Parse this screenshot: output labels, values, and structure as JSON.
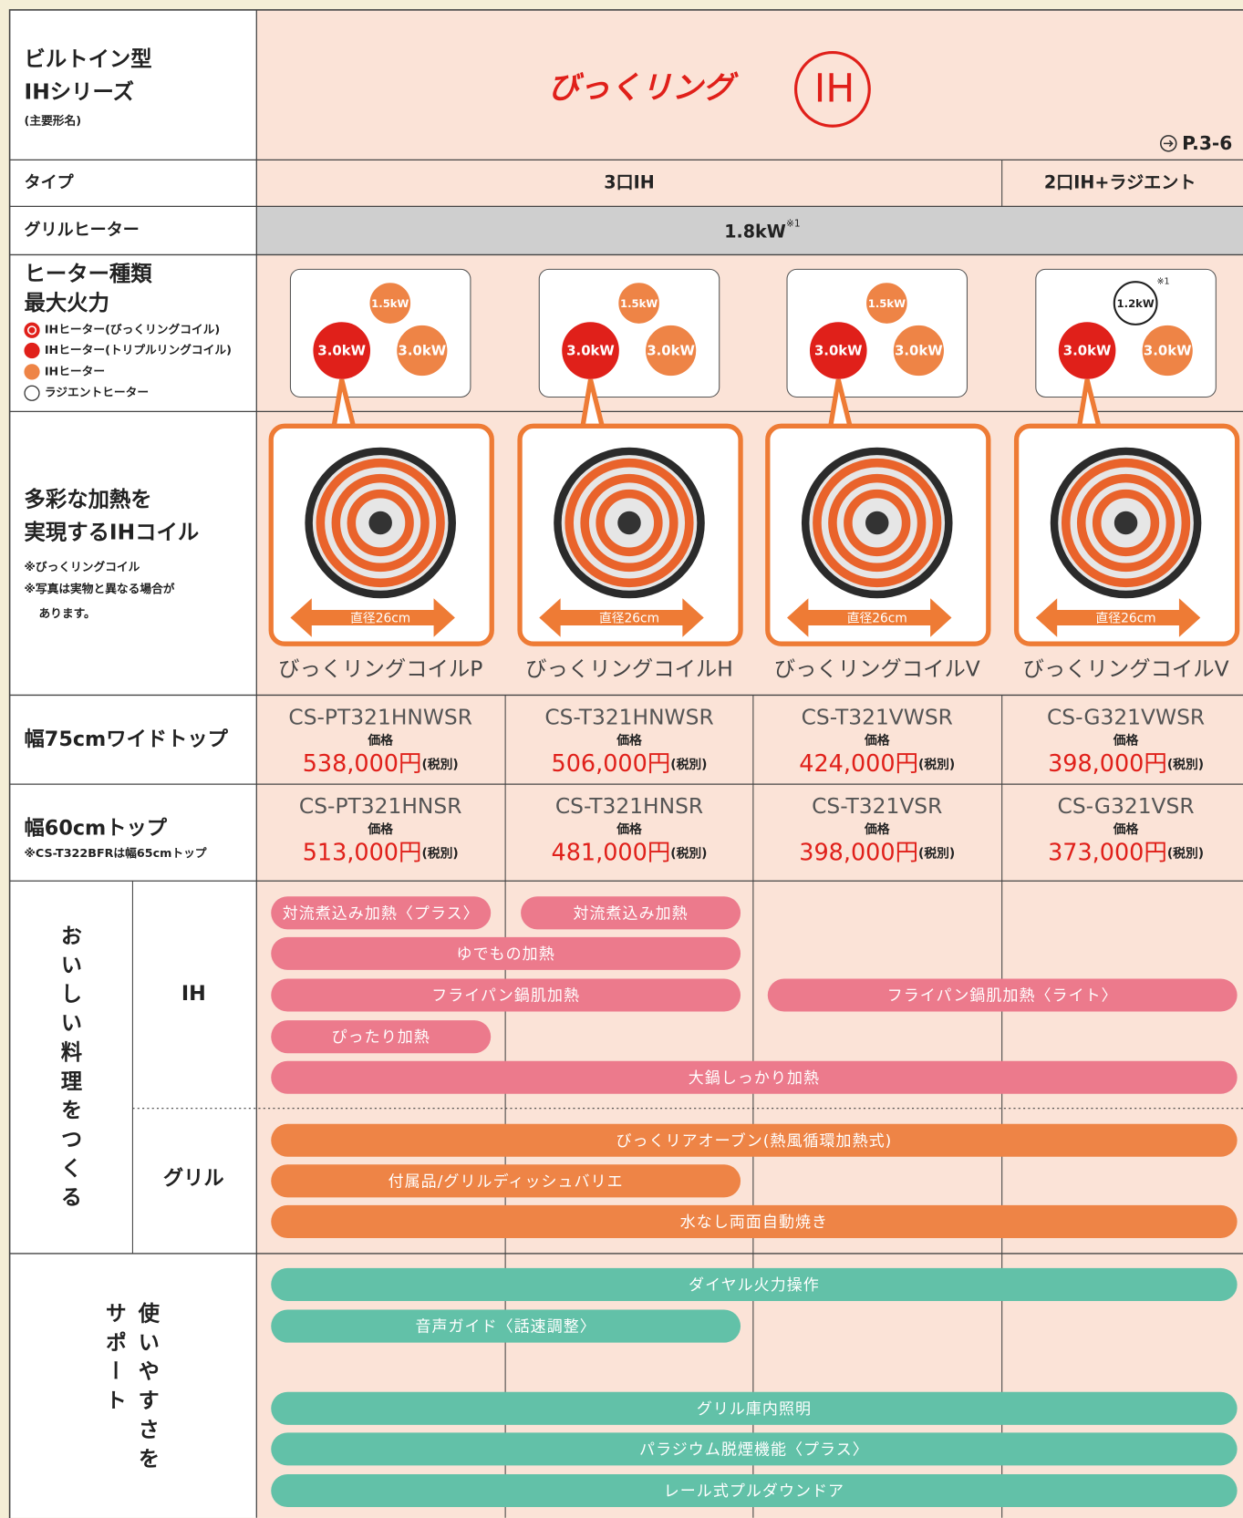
{
  "header": {
    "title_lines": [
      "ビルトイン型",
      "IHシリーズ"
    ],
    "subtitle": "(主要形名)",
    "logo_text": "びっくリング",
    "logo_badge": "IH",
    "page_ref": "P.3-6"
  },
  "type_row": {
    "label": "タイプ",
    "values": [
      "3口IH",
      "2口IH+ラジエント"
    ]
  },
  "grill_row": {
    "label": "グリルヒーター",
    "value": "1.8kW",
    "note": "※1"
  },
  "heater_row": {
    "label_lines": [
      "ヒーター種類",
      "最大火力"
    ],
    "legend": [
      "IHヒーター(びっくリングコイル)",
      "IHヒーター(トリプルリングコイル)",
      "IHヒーター",
      "ラジエントヒーター"
    ],
    "products": [
      {
        "small": "1.5kW",
        "left": "3.0kW",
        "right": "3.0kW"
      },
      {
        "small": "1.5kW",
        "left": "3.0kW",
        "right": "3.0kW"
      },
      {
        "small": "1.5kW",
        "left": "3.0kW",
        "right": "3.0kW"
      },
      {
        "small": "1.2kW",
        "left": "3.0kW",
        "right": "3.0kW",
        "note": "※1"
      }
    ]
  },
  "coil_row": {
    "label_lines": [
      "多彩な加熱を",
      "実現するIHコイル"
    ],
    "notes": [
      "※びっくリングコイル",
      "※写真は実物と異なる場合が",
      "あります。"
    ],
    "products": [
      {
        "diameter": "直径26cm",
        "name": "びっくリングコイルP"
      },
      {
        "diameter": "直径26cm",
        "name": "びっくリングコイルH"
      },
      {
        "diameter": "直径26cm",
        "name": "びっくリングコイルV"
      },
      {
        "diameter": "直径26cm",
        "name": "びっくリングコイルV"
      }
    ]
  },
  "wide_row": {
    "label": "幅75cmワイドトップ",
    "products": [
      {
        "model": "CS-PT321HNWSR",
        "price_label": "価格",
        "price": "538,000円",
        "tax": "(税別)"
      },
      {
        "model": "CS-T321HNWSR",
        "price_label": "価格",
        "price": "506,000円",
        "tax": "(税別)"
      },
      {
        "model": "CS-T321VWSR",
        "price_label": "価格",
        "price": "424,000円",
        "tax": "(税別)"
      },
      {
        "model": "CS-G321VWSR",
        "price_label": "価格",
        "price": "398,000円",
        "tax": "(税別)"
      }
    ]
  },
  "std_row": {
    "label": "幅60cmトップ",
    "note": "※CS-T322BFRは幅65cmトップ",
    "products": [
      {
        "model": "CS-PT321HNSR",
        "price_label": "価格",
        "price": "513,000円",
        "tax": "(税別)"
      },
      {
        "model": "CS-T321HNSR",
        "price_label": "価格",
        "price": "481,000円",
        "tax": "(税別)"
      },
      {
        "model": "CS-T321VSR",
        "price_label": "価格",
        "price": "398,000円",
        "tax": "(税別)"
      },
      {
        "model": "CS-G321VSR",
        "price_label": "価格",
        "price": "373,000円",
        "tax": "(税別)"
      }
    ]
  },
  "cooking": {
    "label": "おいしい料理をつくる",
    "sections": [
      {
        "label": "IH",
        "rows": [
          [
            "対流煮込み加熱〈プラス〉",
            "対流煮込み加熱"
          ],
          [
            "ゆでもの加熱"
          ],
          [
            "フライパン鍋肌加熱",
            "フライパン鍋肌加熱〈ライト〉"
          ],
          [
            "ぴったり加熱"
          ],
          [
            "大鍋しっかり加熱"
          ]
        ]
      },
      {
        "label": "グリル",
        "rows": [
          [
            "びっくリアオーブン(熱風循環加熱式)"
          ],
          [
            "付属品/グリルディッシュバリエ"
          ],
          [
            "水なし両面自動焼き"
          ]
        ]
      }
    ]
  },
  "support": {
    "label_lines": [
      "使いやすさを",
      "サポート"
    ],
    "rows": [
      [
        "ダイヤル火力操作"
      ],
      [
        "音声ガイド〈話速調整〉"
      ],
      [
        "グリル庫内照明"
      ],
      [
        "パラジウム脱煙機能〈プラス〉"
      ],
      [
        "レール式プルダウンドア"
      ]
    ]
  }
}
